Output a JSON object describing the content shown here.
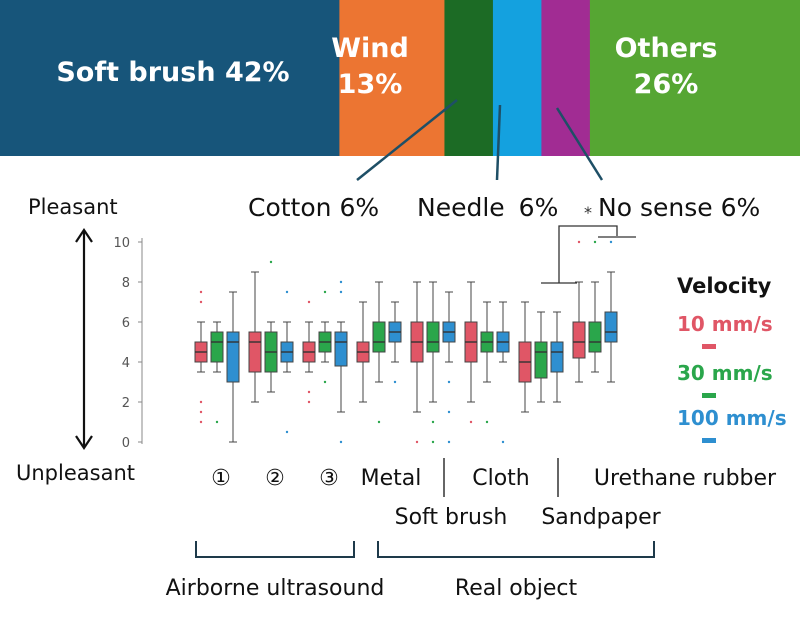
{
  "chart_data": [
    {
      "type": "bar",
      "orientation": "stacked-horizontal-100%",
      "segments": [
        {
          "label": "Soft brush",
          "value_label": "42%",
          "value": 42,
          "color": "#17557a"
        },
        {
          "label": "Wind",
          "value_label": "13%",
          "value": 13,
          "color": "#ec7532"
        },
        {
          "label": "Cotton",
          "value_label": "6%",
          "value": 6,
          "color": "#1c6b25"
        },
        {
          "label": "Needle",
          "value_label": "6%",
          "value": 6,
          "color": "#14a1df"
        },
        {
          "label": "No sense",
          "value_label": "6%",
          "value": 6,
          "color": "#a12c93"
        },
        {
          "label": "Others",
          "value_label": "26%",
          "value": 26,
          "color": "#56a633"
        }
      ],
      "callouts": {
        "cotton": {
          "name": "Cotton",
          "pct": "6%"
        },
        "needle": {
          "name": "Needle",
          "pct": "6%"
        },
        "nosense": {
          "name": "No sense",
          "pct": "6%"
        }
      }
    },
    {
      "type": "box",
      "ylim": [
        0,
        10
      ],
      "yticks": [
        0,
        2,
        4,
        6,
        8,
        10
      ],
      "ylabel_top": "Pleasant",
      "ylabel_bottom": "Unpleasant",
      "legend_title": "Velocity",
      "significance_marker": "*",
      "series": [
        {
          "name": "10 mm/s",
          "color": "#e05666"
        },
        {
          "name": "30 mm/s",
          "color": "#2aa64b"
        },
        {
          "name": "100 mm/s",
          "color": "#2e8fd0"
        }
      ],
      "categories": [
        {
          "label": "①",
          "boxes": [
            {
              "min": 3.5,
              "q1": 4.0,
              "median": 4.5,
              "q3": 5.0,
              "max": 6.0,
              "outliers": [
                1.0,
                1.5,
                2.0,
                7.0,
                7.5
              ]
            },
            {
              "min": 3.5,
              "q1": 4.0,
              "median": 5.0,
              "q3": 5.5,
              "max": 6.0,
              "outliers": [
                1.0
              ]
            },
            {
              "min": 0.0,
              "q1": 3.0,
              "median": 5.0,
              "q3": 5.5,
              "max": 7.5,
              "outliers": []
            }
          ]
        },
        {
          "label": "②",
          "boxes": [
            {
              "min": 2.0,
              "q1": 3.5,
              "median": 5.0,
              "q3": 5.5,
              "max": 8.5,
              "outliers": []
            },
            {
              "min": 2.5,
              "q1": 3.5,
              "median": 4.5,
              "q3": 5.5,
              "max": 6.0,
              "outliers": [
                9.0
              ]
            },
            {
              "min": 3.5,
              "q1": 4.0,
              "median": 4.5,
              "q3": 5.0,
              "max": 6.0,
              "outliers": [
                0.5,
                7.5
              ]
            }
          ]
        },
        {
          "label": "③",
          "boxes": [
            {
              "min": 3.5,
              "q1": 4.0,
              "median": 4.5,
              "q3": 5.0,
              "max": 6.0,
              "outliers": [
                2.0,
                2.5,
                7.0
              ]
            },
            {
              "min": 4.0,
              "q1": 4.5,
              "median": 5.0,
              "q3": 5.5,
              "max": 6.0,
              "outliers": [
                3.0,
                7.5
              ]
            },
            {
              "min": 1.5,
              "q1": 3.8,
              "median": 5.0,
              "q3": 5.5,
              "max": 6.0,
              "outliers": [
                0.0,
                7.5,
                8.0
              ]
            }
          ]
        },
        {
          "label": "Metal",
          "boxes": [
            {
              "min": 2.0,
              "q1": 4.0,
              "median": 4.5,
              "q3": 5.0,
              "max": 7.0,
              "outliers": []
            },
            {
              "min": 3.0,
              "q1": 4.5,
              "median": 5.0,
              "q3": 6.0,
              "max": 8.0,
              "outliers": [
                1.0
              ]
            },
            {
              "min": 4.0,
              "q1": 5.0,
              "median": 5.5,
              "q3": 6.0,
              "max": 7.0,
              "outliers": [
                3.0
              ]
            }
          ]
        },
        {
          "label": "Soft brush",
          "boxes": [
            {
              "min": 1.5,
              "q1": 4.0,
              "median": 5.0,
              "q3": 6.0,
              "max": 8.0,
              "outliers": [
                0.0
              ]
            },
            {
              "min": 2.0,
              "q1": 4.5,
              "median": 5.0,
              "q3": 6.0,
              "max": 8.0,
              "outliers": [
                0.0,
                1.0
              ]
            },
            {
              "min": 4.0,
              "q1": 5.0,
              "median": 5.5,
              "q3": 6.0,
              "max": 7.5,
              "outliers": [
                0.0,
                1.5,
                3.0
              ]
            }
          ]
        },
        {
          "label": "Cloth",
          "boxes": [
            {
              "min": 2.0,
              "q1": 4.0,
              "median": 5.0,
              "q3": 6.0,
              "max": 8.0,
              "outliers": [
                1.0
              ]
            },
            {
              "min": 3.0,
              "q1": 4.5,
              "median": 5.0,
              "q3": 5.5,
              "max": 7.0,
              "outliers": [
                1.0
              ]
            },
            {
              "min": 4.0,
              "q1": 4.5,
              "median": 5.0,
              "q3": 5.5,
              "max": 7.0,
              "outliers": [
                0.0
              ]
            }
          ]
        },
        {
          "label": "Sandpaper",
          "boxes": [
            {
              "min": 1.5,
              "q1": 3.0,
              "median": 4.0,
              "q3": 5.0,
              "max": 7.0,
              "outliers": []
            },
            {
              "min": 2.0,
              "q1": 3.2,
              "median": 4.5,
              "q3": 5.0,
              "max": 6.5,
              "outliers": []
            },
            {
              "min": 2.0,
              "q1": 3.5,
              "median": 4.5,
              "q3": 5.0,
              "max": 6.5,
              "outliers": []
            }
          ]
        },
        {
          "label": "Urethane rubber",
          "boxes": [
            {
              "min": 3.0,
              "q1": 4.2,
              "median": 5.0,
              "q3": 6.0,
              "max": 8.0,
              "outliers": [
                10.0
              ]
            },
            {
              "min": 3.5,
              "q1": 4.5,
              "median": 5.0,
              "q3": 6.0,
              "max": 8.0,
              "outliers": [
                10.0
              ]
            },
            {
              "min": 3.0,
              "q1": 5.0,
              "median": 5.5,
              "q3": 6.5,
              "max": 8.5,
              "outliers": [
                10.0
              ]
            }
          ]
        }
      ],
      "groups": [
        {
          "label": "Airborne ultrasound"
        },
        {
          "label": "Real object"
        }
      ]
    }
  ]
}
